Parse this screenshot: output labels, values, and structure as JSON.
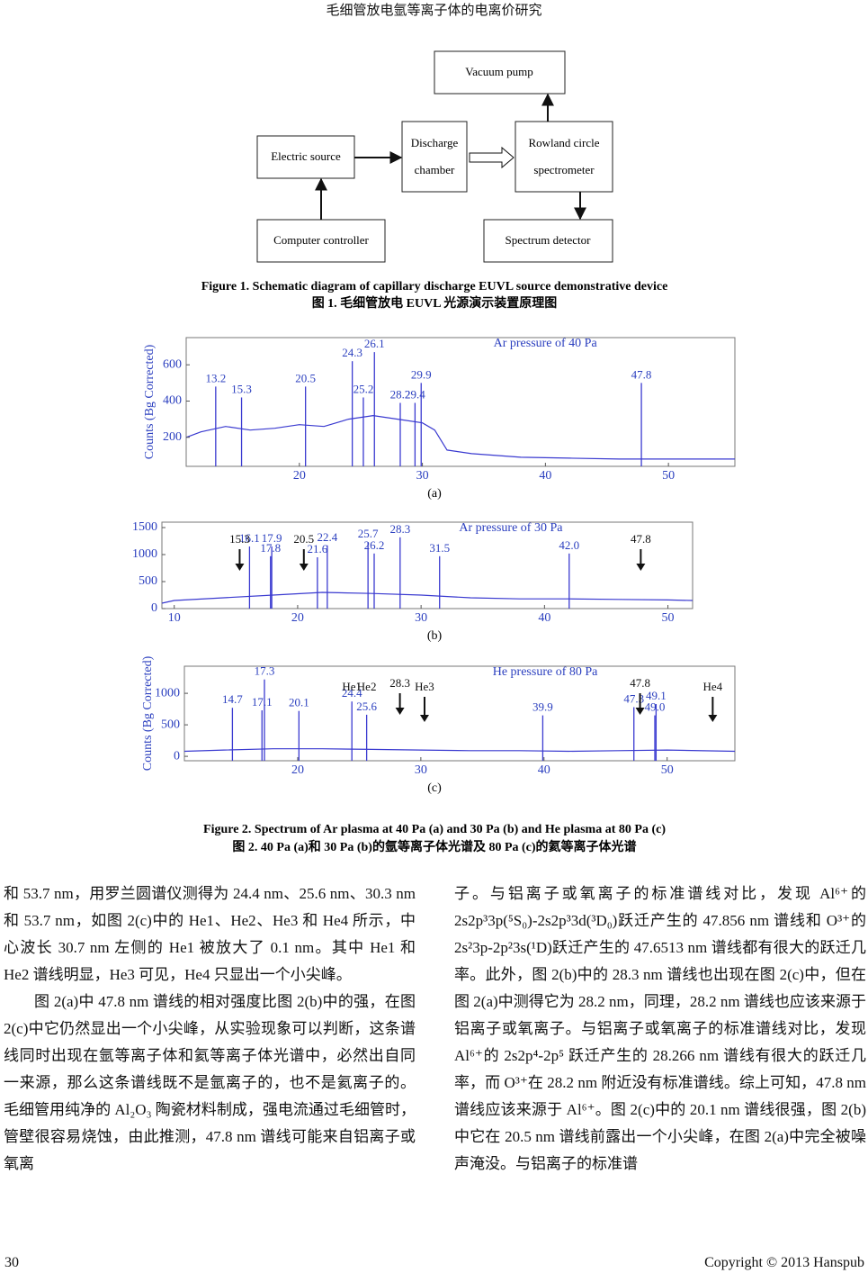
{
  "header": {
    "title": "毛细管放电氩等离子体的电离价研究"
  },
  "figure1": {
    "nodes": {
      "vacuum_pump": [
        "Vacuum pump"
      ],
      "discharge": [
        "Discharge",
        "chamber"
      ],
      "rowland": [
        "Rowland circle",
        "spectrometer"
      ],
      "electric": [
        "Electric source"
      ],
      "computer": [
        "Computer controller"
      ],
      "detector": [
        "Spectrum detector"
      ]
    },
    "caption_en": "Figure 1. Schematic diagram of capillary discharge EUVL source demonstrative device",
    "caption_zh": "图 1.  毛细管放电 EUVL 光源演示装置原理图"
  },
  "chart_data": [
    {
      "type": "spectrum",
      "label": "(a)",
      "title": "Ar pressure of 40 Pa",
      "ylabel": "Counts (Bg Corrected)",
      "x": [
        10.8,
        12,
        14,
        16,
        18,
        20,
        22,
        24,
        26,
        28,
        30,
        31,
        32,
        34,
        38,
        42,
        46,
        50,
        55.4
      ],
      "values": [
        200,
        230,
        260,
        240,
        250,
        270,
        260,
        300,
        320,
        300,
        280,
        240,
        130,
        110,
        90,
        85,
        80,
        80,
        80
      ],
      "peaks": [
        13.2,
        15.3,
        20.5,
        24.3,
        26.1,
        25.2,
        28.2,
        29.9,
        29.4,
        47.8
      ],
      "peak_heights": [
        480,
        420,
        480,
        620,
        670,
        420,
        390,
        500,
        390,
        500
      ],
      "color": "#3a3ad0",
      "label_color": "#2b3fbf",
      "xlim": [
        10.8,
        55.4
      ],
      "ylim": [
        40,
        750
      ],
      "xticks": [
        20,
        30,
        40,
        50
      ],
      "yticks": [
        200,
        400,
        600
      ]
    },
    {
      "type": "spectrum",
      "label": "(b)",
      "title": "Ar pressure of 30 Pa",
      "x": [
        9,
        10,
        14,
        18,
        22,
        26,
        30,
        34,
        38,
        42,
        46,
        50,
        52
      ],
      "values": [
        100,
        150,
        200,
        250,
        300,
        280,
        250,
        200,
        180,
        180,
        170,
        160,
        150
      ],
      "peaks": [
        16.1,
        17.9,
        17.8,
        22.4,
        21.6,
        25.7,
        26.2,
        28.3,
        31.5,
        {
          "value": 42,
          "label": "42.0"
        }
      ],
      "peak_heights": [
        1150,
        1150,
        970,
        1170,
        950,
        1230,
        1020,
        1320,
        970,
        1020
      ],
      "arrows": [
        15.3,
        20.5,
        47.8
      ],
      "color": "#3a3ad0",
      "label_color": "#2b3fbf",
      "xlim": [
        9,
        52
      ],
      "ylim": [
        0,
        1600
      ],
      "xticks": [
        10,
        20,
        30,
        40,
        50
      ],
      "yticks": [
        0,
        500,
        1000,
        1500
      ]
    },
    {
      "type": "spectrum",
      "label": "(c)",
      "title": "He pressure of 80 Pa",
      "ylabel": "Counts (Bg Corrected)",
      "x": [
        10.8,
        14,
        18,
        22,
        26,
        30,
        34,
        38,
        42,
        46,
        50,
        55.5
      ],
      "values": [
        80,
        100,
        120,
        120,
        110,
        100,
        90,
        90,
        80,
        90,
        100,
        80
      ],
      "peaks": [
        14.7,
        17.3,
        17.1,
        20.1,
        24.4,
        25.6,
        39.9,
        47.3,
        49.1,
        {
          "value": 49,
          "label": "49.0"
        }
      ],
      "peak_heights": [
        770,
        1220,
        730,
        720,
        870,
        660,
        650,
        780,
        830,
        650
      ],
      "arrows": [
        28.3,
        47.8
      ],
      "markers": [
        {
          "label": "He1",
          "x": 24.4,
          "arrow": false
        },
        {
          "label": "He2",
          "x": 25.6,
          "arrow": false
        },
        {
          "label": "He3",
          "x": 30.3,
          "arrow": true
        },
        {
          "label": "He4",
          "x": 53.7,
          "arrow": true
        }
      ],
      "color": "#3a3ad0",
      "label_color": "#2b3fbf",
      "xlim": [
        10.8,
        55.5
      ],
      "ylim": [
        -70,
        1430
      ],
      "xticks": [
        20,
        30,
        40,
        50
      ],
      "yticks": [
        0,
        500,
        1000
      ]
    }
  ],
  "figure2": {
    "caption_en": "Figure 2. Spectrum of Ar plasma at 40 Pa (a) and 30 Pa (b) and He plasma at 80 Pa (c)",
    "caption_zh": "图 2. 40 Pa (a)和 30 Pa (b)的氩等离子体光谱及 80 Pa (c)的氦等离子体光谱"
  },
  "body": {
    "left": [
      "和 53.7 nm，用罗兰圆谱仪测得为 24.4 nm、25.6 nm、30.3 nm 和 53.7 nm，如图 2(c)中的 He1、He2、He3 和 He4 所示，中心波长 30.7 nm 左侧的 He1 被放大了 0.1 nm。其中 He1 和 He2 谱线明显，He3 可见，He4 只显出一个小尖峰。",
      "图 2(a)中 47.8 nm 谱线的相对强度比图 2(b)中的强，在图 2(c)中它仍然显出一个小尖峰，从实验现象可以判断，这条谱线同时出现在氩等离子体和氦等离子体光谱中，必然出自同一来源，那么这条谱线既不是氩离子的，也不是氦离子的。毛细管用纯净的 Al₂O₃ 陶瓷材料制成，强电流通过毛细管时，管壁很容易烧蚀，由此推测，47.8 nm 谱线可能来自铝离子或氧离"
    ],
    "right": [
      "子。与铝离子或氧离子的标准谱线对比，发现 Al⁶⁺的 2s2p³3p(⁵S₀)-2s2p³3d(³D₀)跃迁产生的 47.856 nm 谱线和 O³⁺的 2s²3p-2p²3s(¹D)跃迁产生的 47.6513 nm 谱线都有很大的跃迁几率。此外，图 2(b)中的 28.3 nm 谱线也出现在图 2(c)中，但在图 2(a)中测得它为 28.2 nm，同理，28.2 nm 谱线也应该来源于铝离子或氧离子。与铝离子或氧离子的标准谱线对比，发现 Al⁶⁺的 2s2p⁴-2p⁵ 跃迁产生的 28.266 nm 谱线有很大的跃迁几率，而 O³⁺在 28.2 nm 附近没有标准谱线。综上可知，47.8 nm 谱线应该来源于 Al⁶⁺。图 2(c)中的 20.1 nm 谱线很强，图 2(b)中它在 20.5 nm 谱线前露出一个小尖峰，在图 2(a)中完全被噪声淹没。与铝离子的标准谱"
    ]
  },
  "footer": {
    "page": "30",
    "copyright": "Copyright © 2013 Hanspub"
  }
}
